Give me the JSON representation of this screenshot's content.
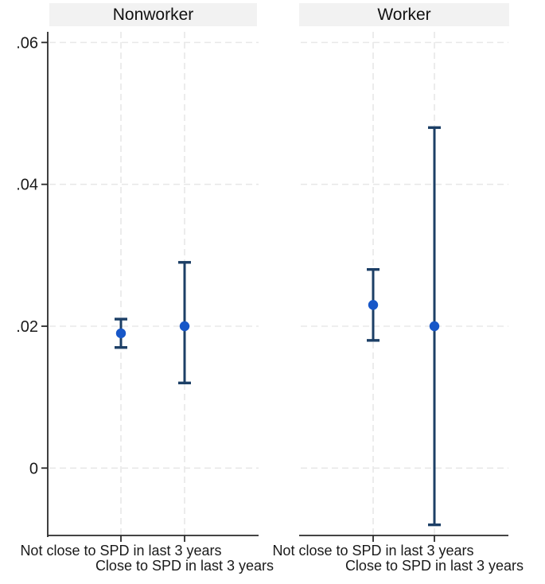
{
  "chart_data": {
    "type": "scatter",
    "subtype": "coefficient-plot-with-confidence-intervals",
    "panels": [
      {
        "title": "Nonworker",
        "points": [
          {
            "category": "Not close to SPD in last 3 years",
            "estimate": 0.019,
            "ci_low": 0.017,
            "ci_high": 0.021
          },
          {
            "category": "Close to SPD in last 3 years",
            "estimate": 0.02,
            "ci_low": 0.012,
            "ci_high": 0.029
          }
        ]
      },
      {
        "title": "Worker",
        "points": [
          {
            "category": "Not close to SPD in last 3 years",
            "estimate": 0.023,
            "ci_low": 0.018,
            "ci_high": 0.028
          },
          {
            "category": "Close to SPD in last 3 years",
            "estimate": 0.02,
            "ci_low": -0.008,
            "ci_high": 0.048
          }
        ]
      }
    ],
    "yticks": [
      0,
      0.02,
      0.04,
      0.06
    ],
    "ytick_labels": [
      "0",
      ".02",
      ".04",
      ".06"
    ],
    "ylim": [
      -0.0095,
      0.0615
    ],
    "grid": true,
    "legend": "none",
    "colors": {
      "marker": "#1757c8",
      "ci_line": "#1c3f66",
      "grid_line": "#e8e8e8",
      "axis_line": "#2a2a2a",
      "text": "#1a1a1a",
      "panel_band": "#f2f2f2"
    }
  }
}
